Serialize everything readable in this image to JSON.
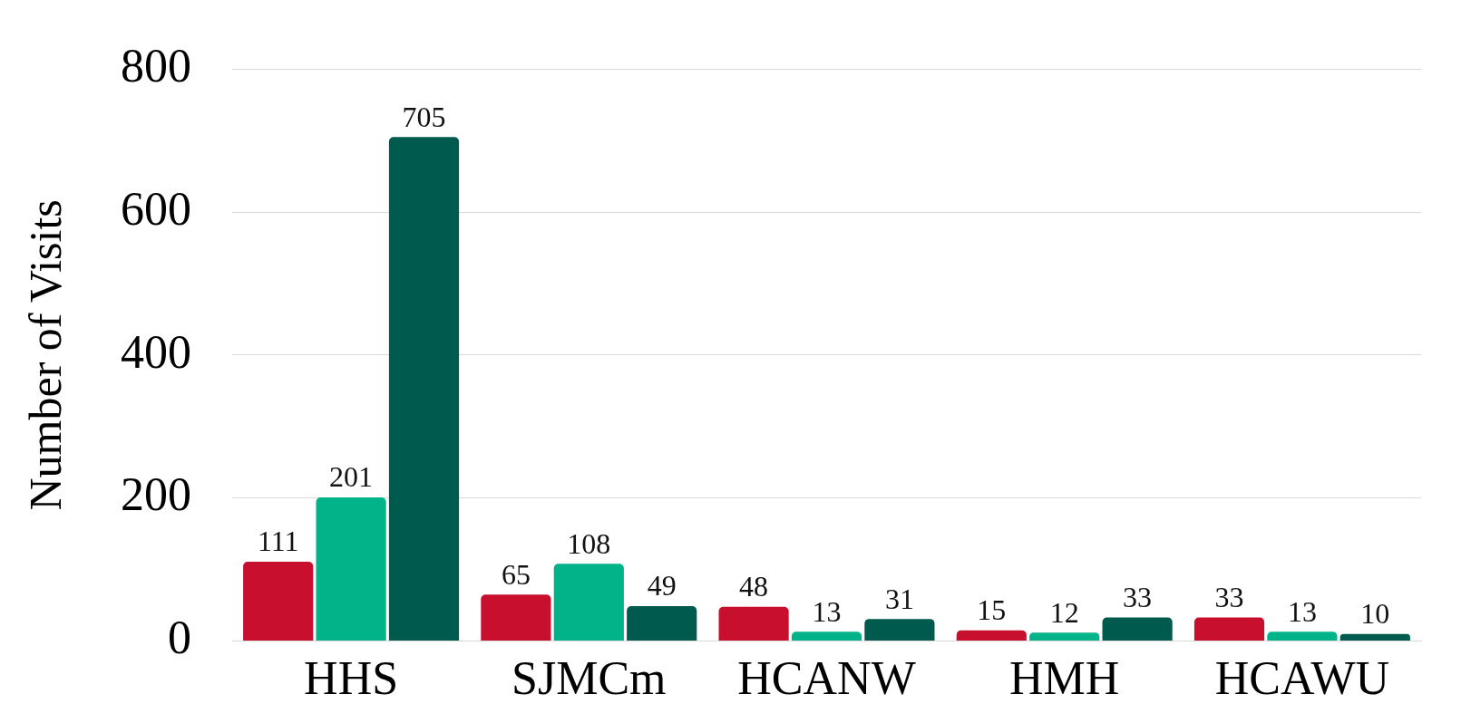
{
  "chart_data": {
    "type": "bar",
    "ylabel": "Number of Visits",
    "categories": [
      "HHS",
      "SJMCm",
      "HCANW",
      "HMH",
      "HCAWU"
    ],
    "series": [
      {
        "color": "#c8102e",
        "values": [
          111,
          65,
          48,
          15,
          33
        ]
      },
      {
        "color": "#00b388",
        "values": [
          201,
          108,
          13,
          12,
          13
        ]
      },
      {
        "color": "#005a4e",
        "values": [
          705,
          49,
          31,
          33,
          10
        ]
      }
    ],
    "ylim": [
      0,
      800
    ],
    "yticks": [
      0,
      200,
      400,
      600,
      800
    ],
    "grid": "y",
    "data_labels": true,
    "legend": false
  }
}
